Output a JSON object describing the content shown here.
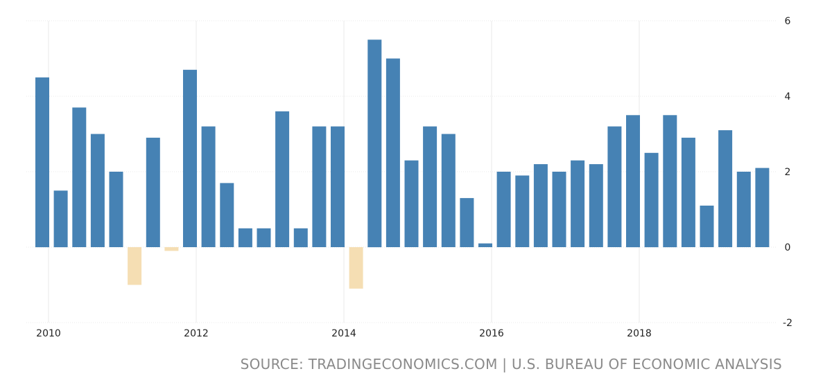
{
  "chart_data": {
    "type": "bar",
    "xlabel": "",
    "ylabel": "",
    "ylim": [
      -2,
      6
    ],
    "y_ticks": [
      -2,
      0,
      2,
      4,
      6
    ],
    "x_ticks": [
      "2010",
      "2012",
      "2014",
      "2016",
      "2018"
    ],
    "x_tick_years": [
      2010,
      2012,
      2014,
      2016,
      2018
    ],
    "grid": true,
    "legend": "none",
    "colors": {
      "positive": "#4682b4",
      "negative": "#f5deb3",
      "grid": "#e8e8e8"
    },
    "categories": [
      "2010-Q1",
      "2010-Q2",
      "2010-Q3",
      "2010-Q4",
      "2011-Q1",
      "2011-Q2",
      "2011-Q3",
      "2011-Q4",
      "2012-Q1",
      "2012-Q2",
      "2012-Q3",
      "2012-Q4",
      "2013-Q1",
      "2013-Q2",
      "2013-Q3",
      "2013-Q4",
      "2014-Q1",
      "2014-Q2",
      "2014-Q3",
      "2014-Q4",
      "2015-Q1",
      "2015-Q2",
      "2015-Q3",
      "2015-Q4",
      "2016-Q1",
      "2016-Q2",
      "2016-Q3",
      "2016-Q4",
      "2017-Q1",
      "2017-Q2",
      "2017-Q3",
      "2017-Q4",
      "2018-Q1",
      "2018-Q2",
      "2018-Q3",
      "2018-Q4",
      "2019-Q1",
      "2019-Q2",
      "2019-Q3",
      "2019-Q4"
    ],
    "values": [
      4.5,
      1.5,
      3.7,
      3.0,
      2.0,
      -1.0,
      2.9,
      -0.1,
      4.7,
      3.2,
      1.7,
      0.5,
      0.5,
      3.6,
      0.5,
      3.2,
      3.2,
      -1.1,
      5.5,
      5.0,
      2.3,
      3.2,
      3.0,
      1.3,
      0.1,
      2.0,
      1.9,
      2.2,
      2.0,
      2.3,
      2.2,
      3.2,
      3.5,
      2.5,
      3.5,
      2.9,
      1.1,
      3.1,
      2.0,
      2.1
    ]
  },
  "footer": {
    "source": "SOURCE: TRADINGECONOMICS.COM | U.S. BUREAU OF ECONOMIC ANALYSIS"
  }
}
